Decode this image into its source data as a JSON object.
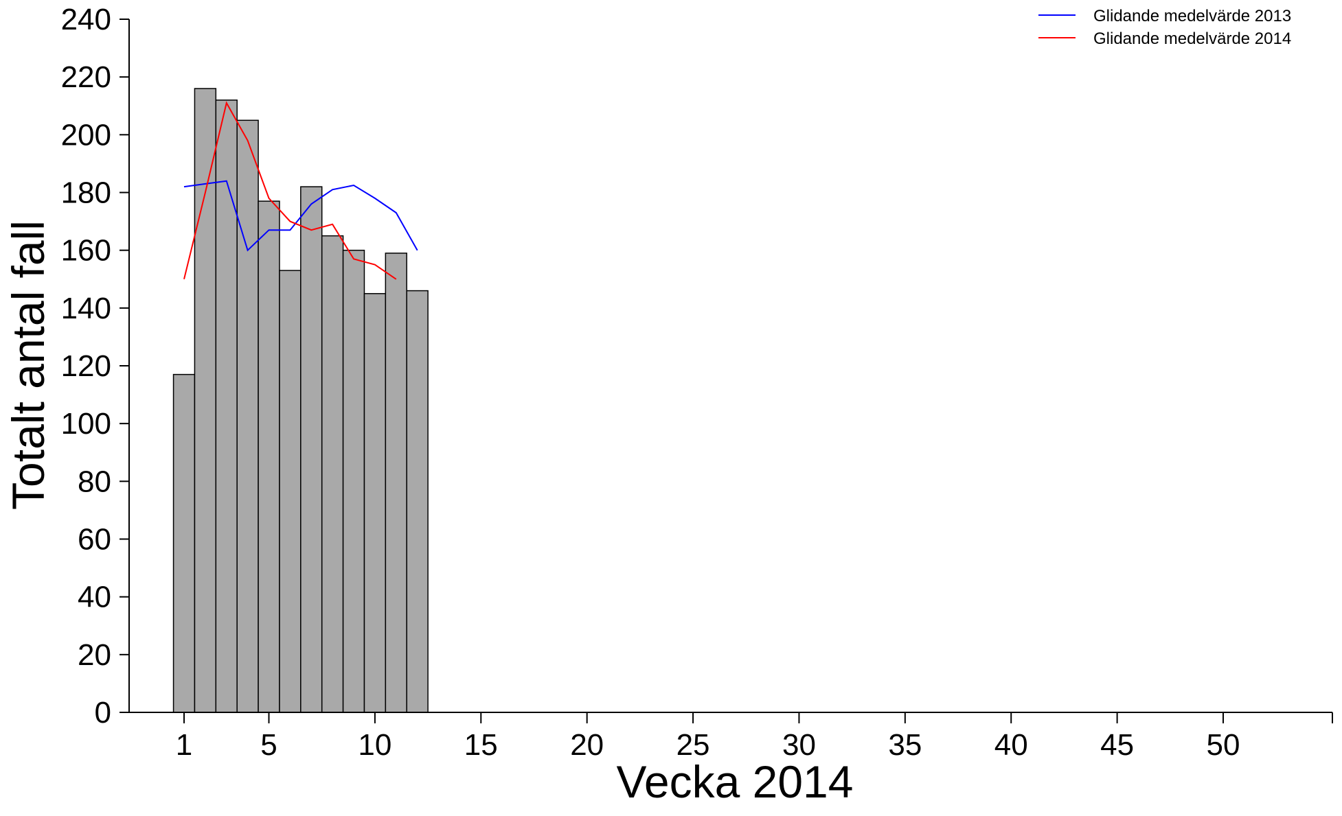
{
  "chart_data": {
    "type": "bar",
    "xlabel": "Vecka 2014",
    "ylabel": "Totalt antal fall",
    "xlim": [
      -1.5,
      55
    ],
    "ylim": [
      0,
      240
    ],
    "x_ticks": [
      1,
      5,
      10,
      15,
      20,
      25,
      30,
      35,
      40,
      45,
      50
    ],
    "y_ticks": [
      0,
      20,
      40,
      60,
      80,
      100,
      120,
      140,
      160,
      180,
      200,
      220,
      240
    ],
    "grid": false,
    "legend_position": "top-right",
    "bar_color": "#a9a9a9",
    "weeks": [
      1,
      2,
      3,
      4,
      5,
      6,
      7,
      8,
      9,
      10,
      11,
      12
    ],
    "values": [
      117,
      216,
      212,
      205,
      177,
      153,
      182,
      165,
      160,
      145,
      159,
      146
    ],
    "series": [
      {
        "name": "Glidande medelvärde 2013",
        "color": "#0000ff",
        "x": [
          1,
          2,
          3,
          4,
          5,
          6,
          7,
          8,
          9,
          10,
          11,
          12
        ],
        "values": [
          182,
          183,
          184,
          160,
          167,
          167,
          176,
          181,
          182.5,
          178,
          173,
          160
        ]
      },
      {
        "name": "Glidande medelvärde 2014",
        "color": "#ff0000",
        "x": [
          1,
          2,
          3,
          4,
          5,
          6,
          7,
          8,
          9,
          10,
          11
        ],
        "values": [
          150,
          180,
          211,
          198,
          178,
          170,
          167,
          169,
          157,
          155,
          150
        ]
      }
    ]
  }
}
